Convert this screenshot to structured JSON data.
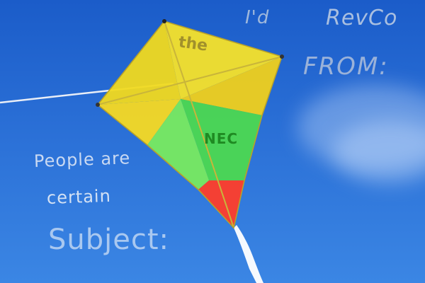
{
  "scene": {
    "sky_color": "#2a6fd6",
    "kite_colors": {
      "yellow": "#f5e12a",
      "green": "#63e04d",
      "red": "#ff3d2a"
    }
  },
  "overlay_text": {
    "id": "I'd",
    "revco": "RevCo",
    "from": "FROM:",
    "people": "People are",
    "certain": "certain",
    "subject": "Subject:"
  },
  "kite_text": {
    "the": "the",
    "nec": "NEC"
  }
}
